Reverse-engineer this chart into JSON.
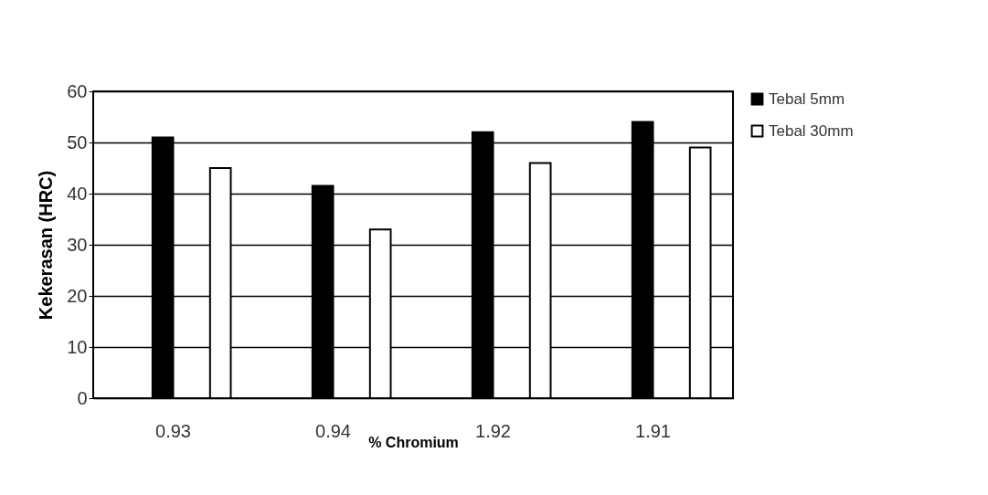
{
  "chart_data": {
    "type": "bar",
    "xlabel": "% Chromium",
    "ylabel": "Kekerasan (HRC)",
    "categories": [
      "0.93",
      "0.94",
      "1.92",
      "1.91"
    ],
    "series": [
      {
        "name": "Tebal 5mm",
        "color": "#000000",
        "values": [
          51,
          41.5,
          52,
          54
        ]
      },
      {
        "name": "Tebal 30mm",
        "color": "#ffffff",
        "values": [
          45,
          33,
          46,
          49
        ]
      }
    ],
    "ylim": [
      0,
      60
    ],
    "yticks": [
      0,
      10,
      20,
      30,
      40,
      50,
      60
    ],
    "grid": "y",
    "legend": "right"
  }
}
